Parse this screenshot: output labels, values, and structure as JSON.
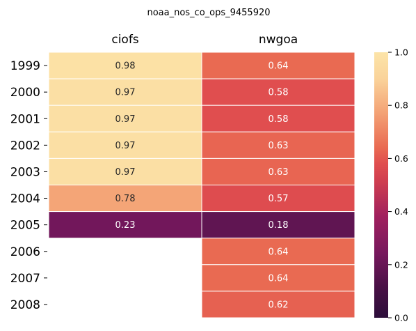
{
  "chart_data": {
    "type": "heatmap",
    "title": "noaa_nos_co_ops_9455920",
    "columns": [
      "ciofs",
      "nwgoa"
    ],
    "rows": [
      "1999",
      "2000",
      "2001",
      "2002",
      "2003",
      "2004",
      "2005",
      "2006",
      "2007",
      "2008"
    ],
    "values": [
      [
        0.98,
        0.64
      ],
      [
        0.97,
        0.58
      ],
      [
        0.97,
        0.58
      ],
      [
        0.97,
        0.63
      ],
      [
        0.97,
        0.63
      ],
      [
        0.78,
        0.57
      ],
      [
        0.23,
        0.18
      ],
      [
        null,
        0.64
      ],
      [
        null,
        0.64
      ],
      [
        null,
        0.62
      ]
    ],
    "colorbar": {
      "colormap": "magma",
      "range": [
        0.0,
        1.0
      ],
      "ticks": [
        "0.0",
        "0.2",
        "0.4",
        "0.6",
        "0.8",
        "1.0"
      ]
    },
    "annotation_format": "0.00"
  }
}
